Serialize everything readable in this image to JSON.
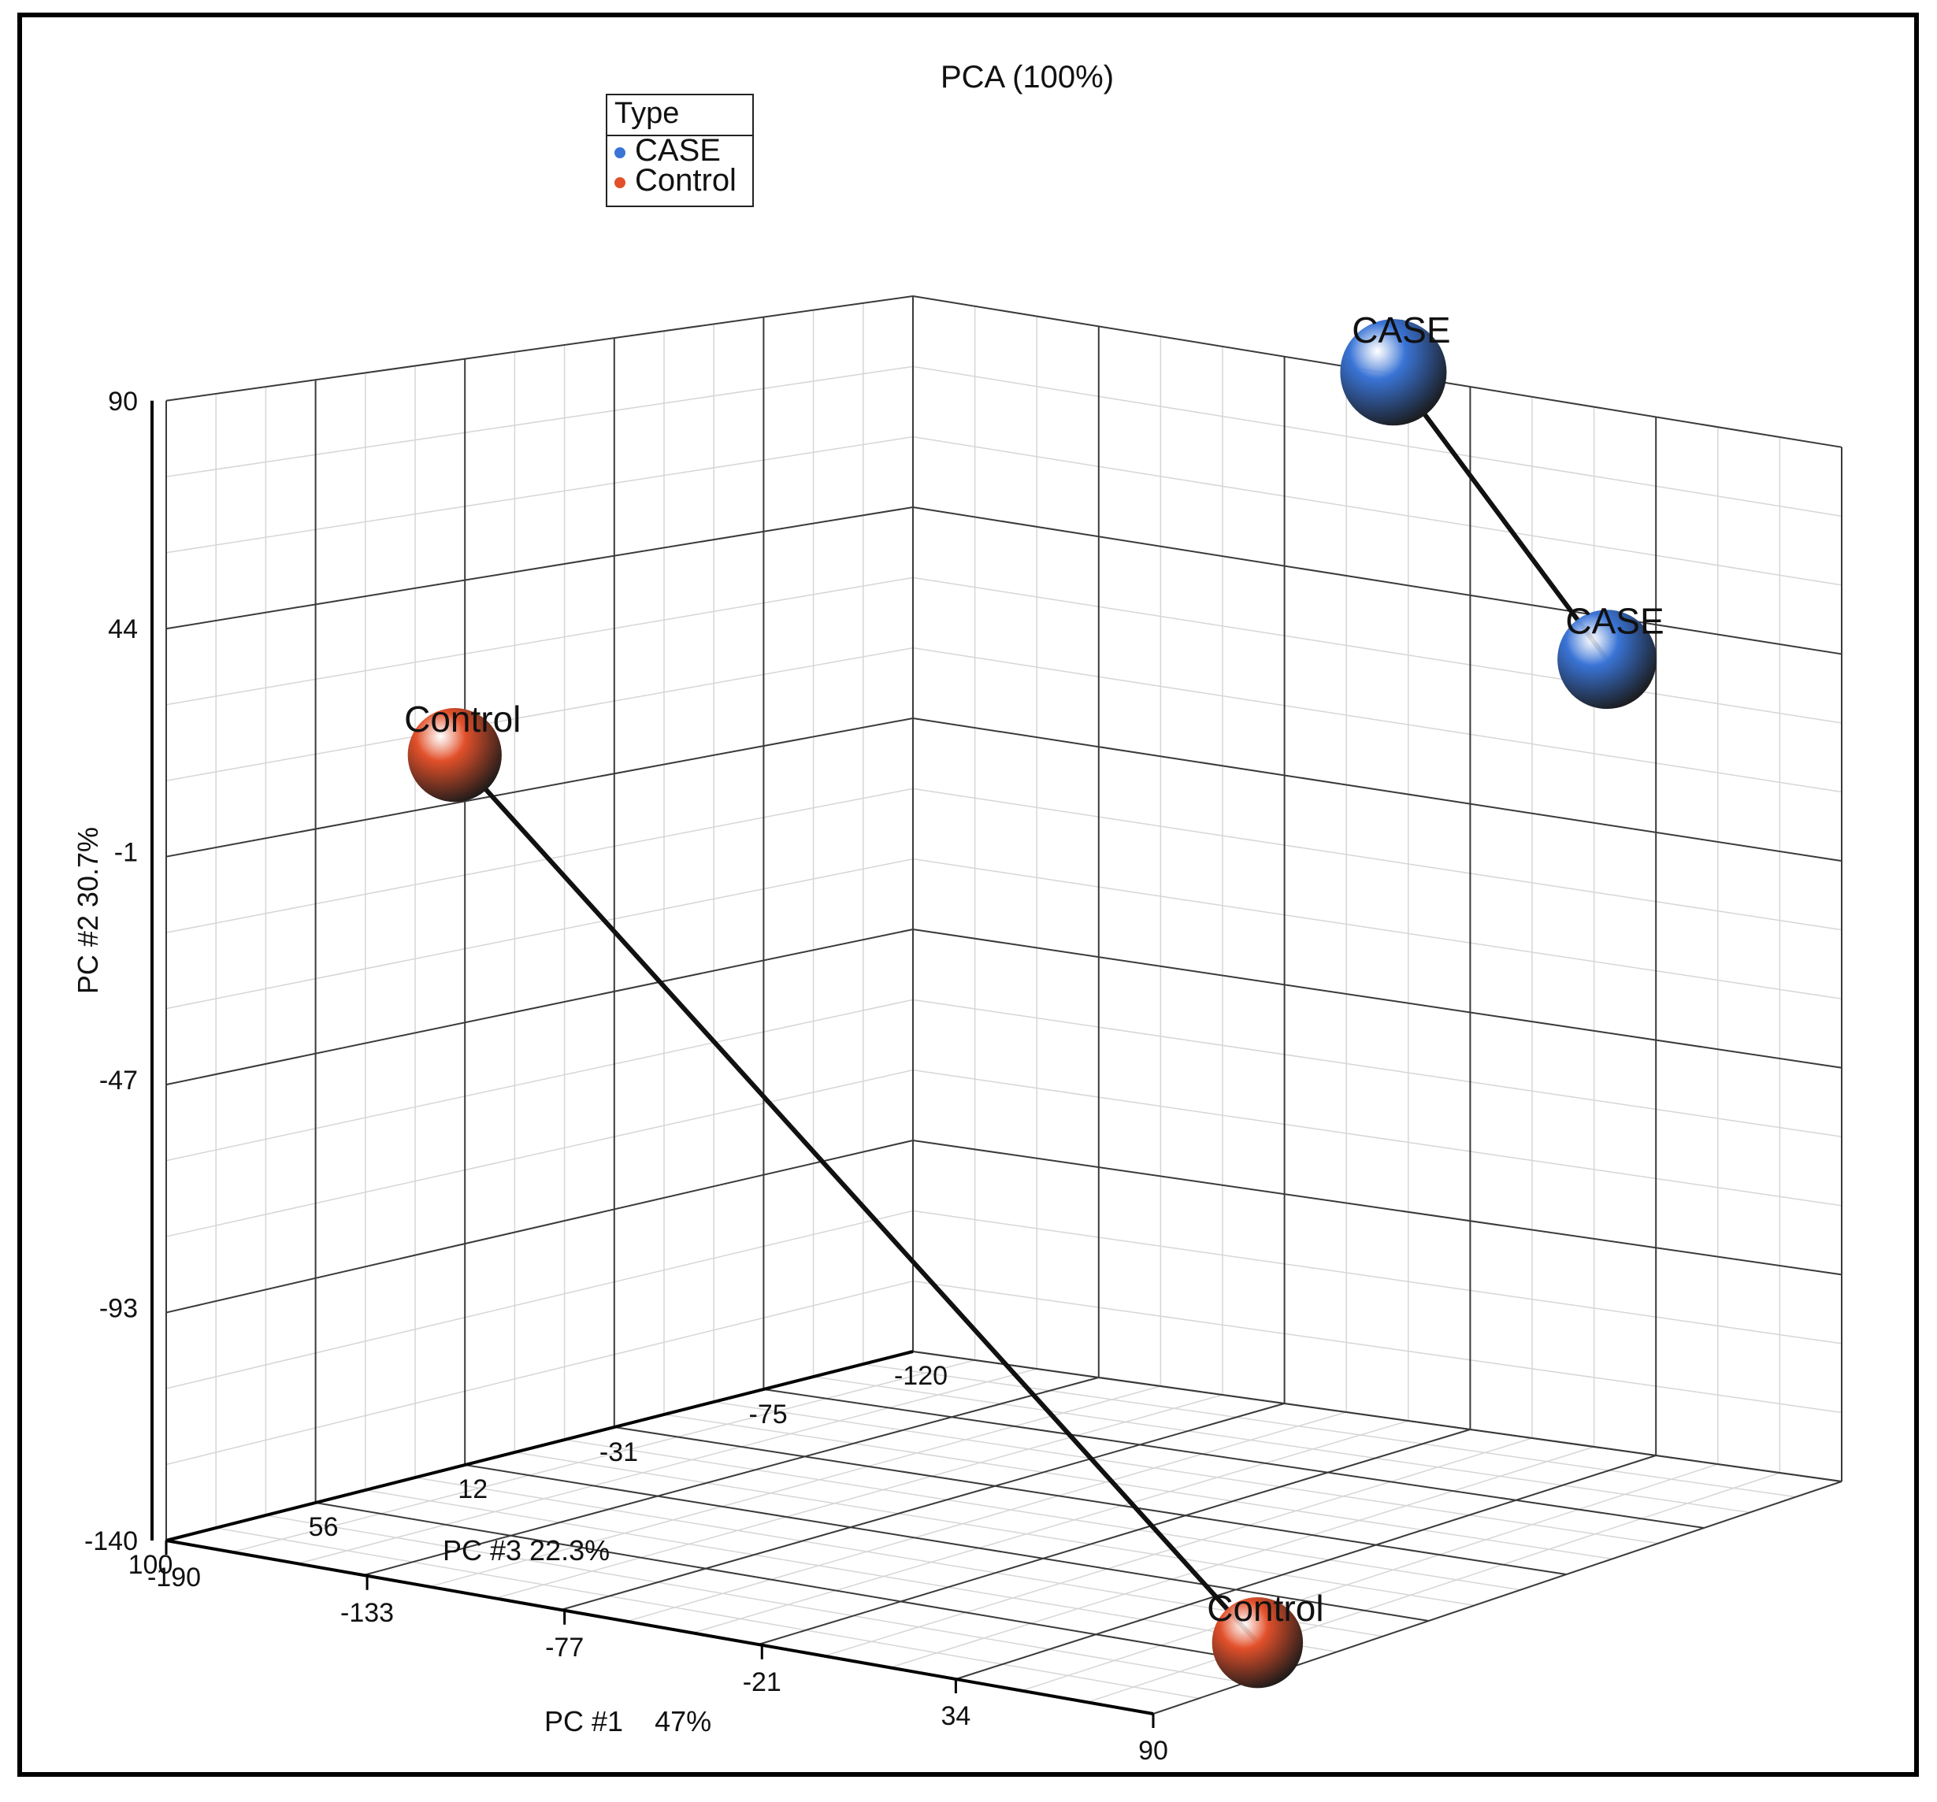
{
  "chart_data": {
    "type": "scatter",
    "title": "PCA (100%)",
    "axes": {
      "pc1": {
        "label": "PC #1    47%",
        "ticks": [
          -190,
          -133,
          -77,
          -21,
          34,
          90
        ],
        "range": [
          -190,
          90
        ]
      },
      "pc2": {
        "label": "PC #2 30.7%",
        "ticks": [
          90,
          44,
          -1,
          -47,
          -93,
          -140
        ],
        "range": [
          -140,
          90
        ]
      },
      "pc3": {
        "label": "PC #3 22.3%",
        "ticks": [
          100,
          56,
          12,
          -31,
          -75,
          -120
        ],
        "range": [
          -120,
          100
        ]
      }
    },
    "legend": {
      "title": "Type",
      "placement": "top-left",
      "entries": [
        {
          "name": "CASE",
          "color": "#3a74d6"
        },
        {
          "name": "Control",
          "color": "#e2502a"
        }
      ]
    },
    "series": [
      {
        "name": "CASE",
        "color": "#3a74d6",
        "points": [
          {
            "label": "CASE",
            "pc1": -55,
            "pc2": 88,
            "pc3": -130
          },
          {
            "label": "CASE",
            "pc1": 90,
            "pc2": 55,
            "pc3": -45
          }
        ]
      },
      {
        "name": "Control",
        "color": "#e2502a",
        "points": [
          {
            "label": "Control",
            "pc1": -190,
            "pc2": 8,
            "pc3": 15
          },
          {
            "label": "Control",
            "pc1": 75,
            "pc2": -138,
            "pc3": 50
          }
        ]
      }
    ],
    "grid": true
  }
}
